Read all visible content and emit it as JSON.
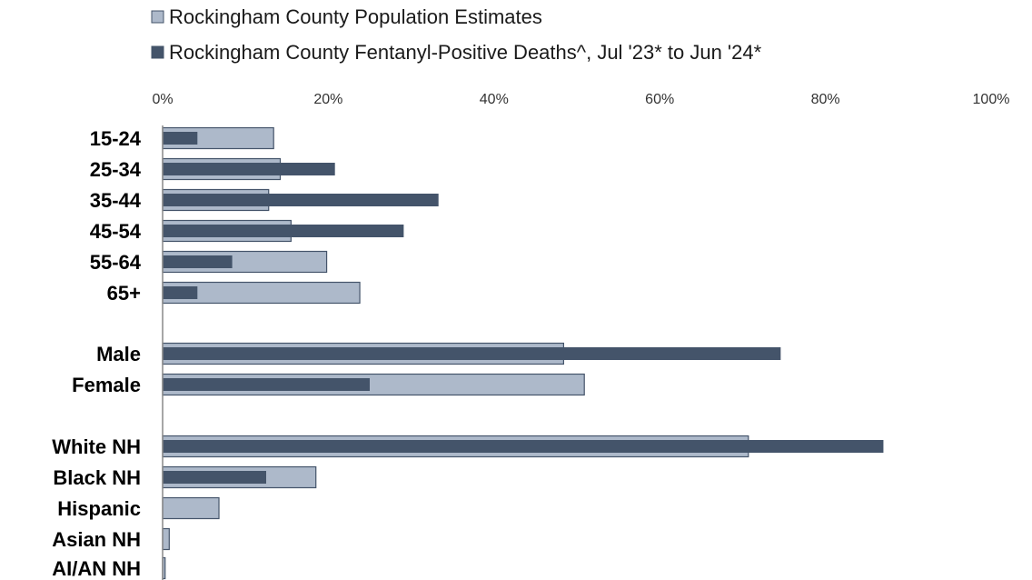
{
  "chart_data": {
    "type": "bar",
    "orientation": "horizontal",
    "xlim": [
      0,
      100
    ],
    "x_ticks": [
      "0%",
      "20%",
      "40%",
      "60%",
      "80%",
      "100%"
    ],
    "grid": false,
    "legend_placement": "top",
    "categories": [
      "15-24",
      "25-34",
      "35-44",
      "45-54",
      "55-64",
      "65+",
      "Male",
      "Female",
      "White NH",
      "Black NH",
      "Hispanic",
      "Asian NH",
      "AI/AN NH"
    ],
    "series": [
      {
        "name": "Rockingham County Population Estimates",
        "color": "#adb9ca",
        "values": [
          13.4,
          14.2,
          12.8,
          15.5,
          19.8,
          23.8,
          48.4,
          50.9,
          70.7,
          18.5,
          6.8,
          0.8,
          0.3
        ]
      },
      {
        "name": "Rockingham County Fentanyl-Positive Deaths^, Jul '23* to Jun '24*",
        "color": "#44546a",
        "values": [
          4.2,
          20.8,
          33.3,
          29.1,
          8.4,
          4.2,
          74.6,
          25.0,
          87.0,
          12.5,
          0,
          0,
          0
        ]
      }
    ]
  }
}
